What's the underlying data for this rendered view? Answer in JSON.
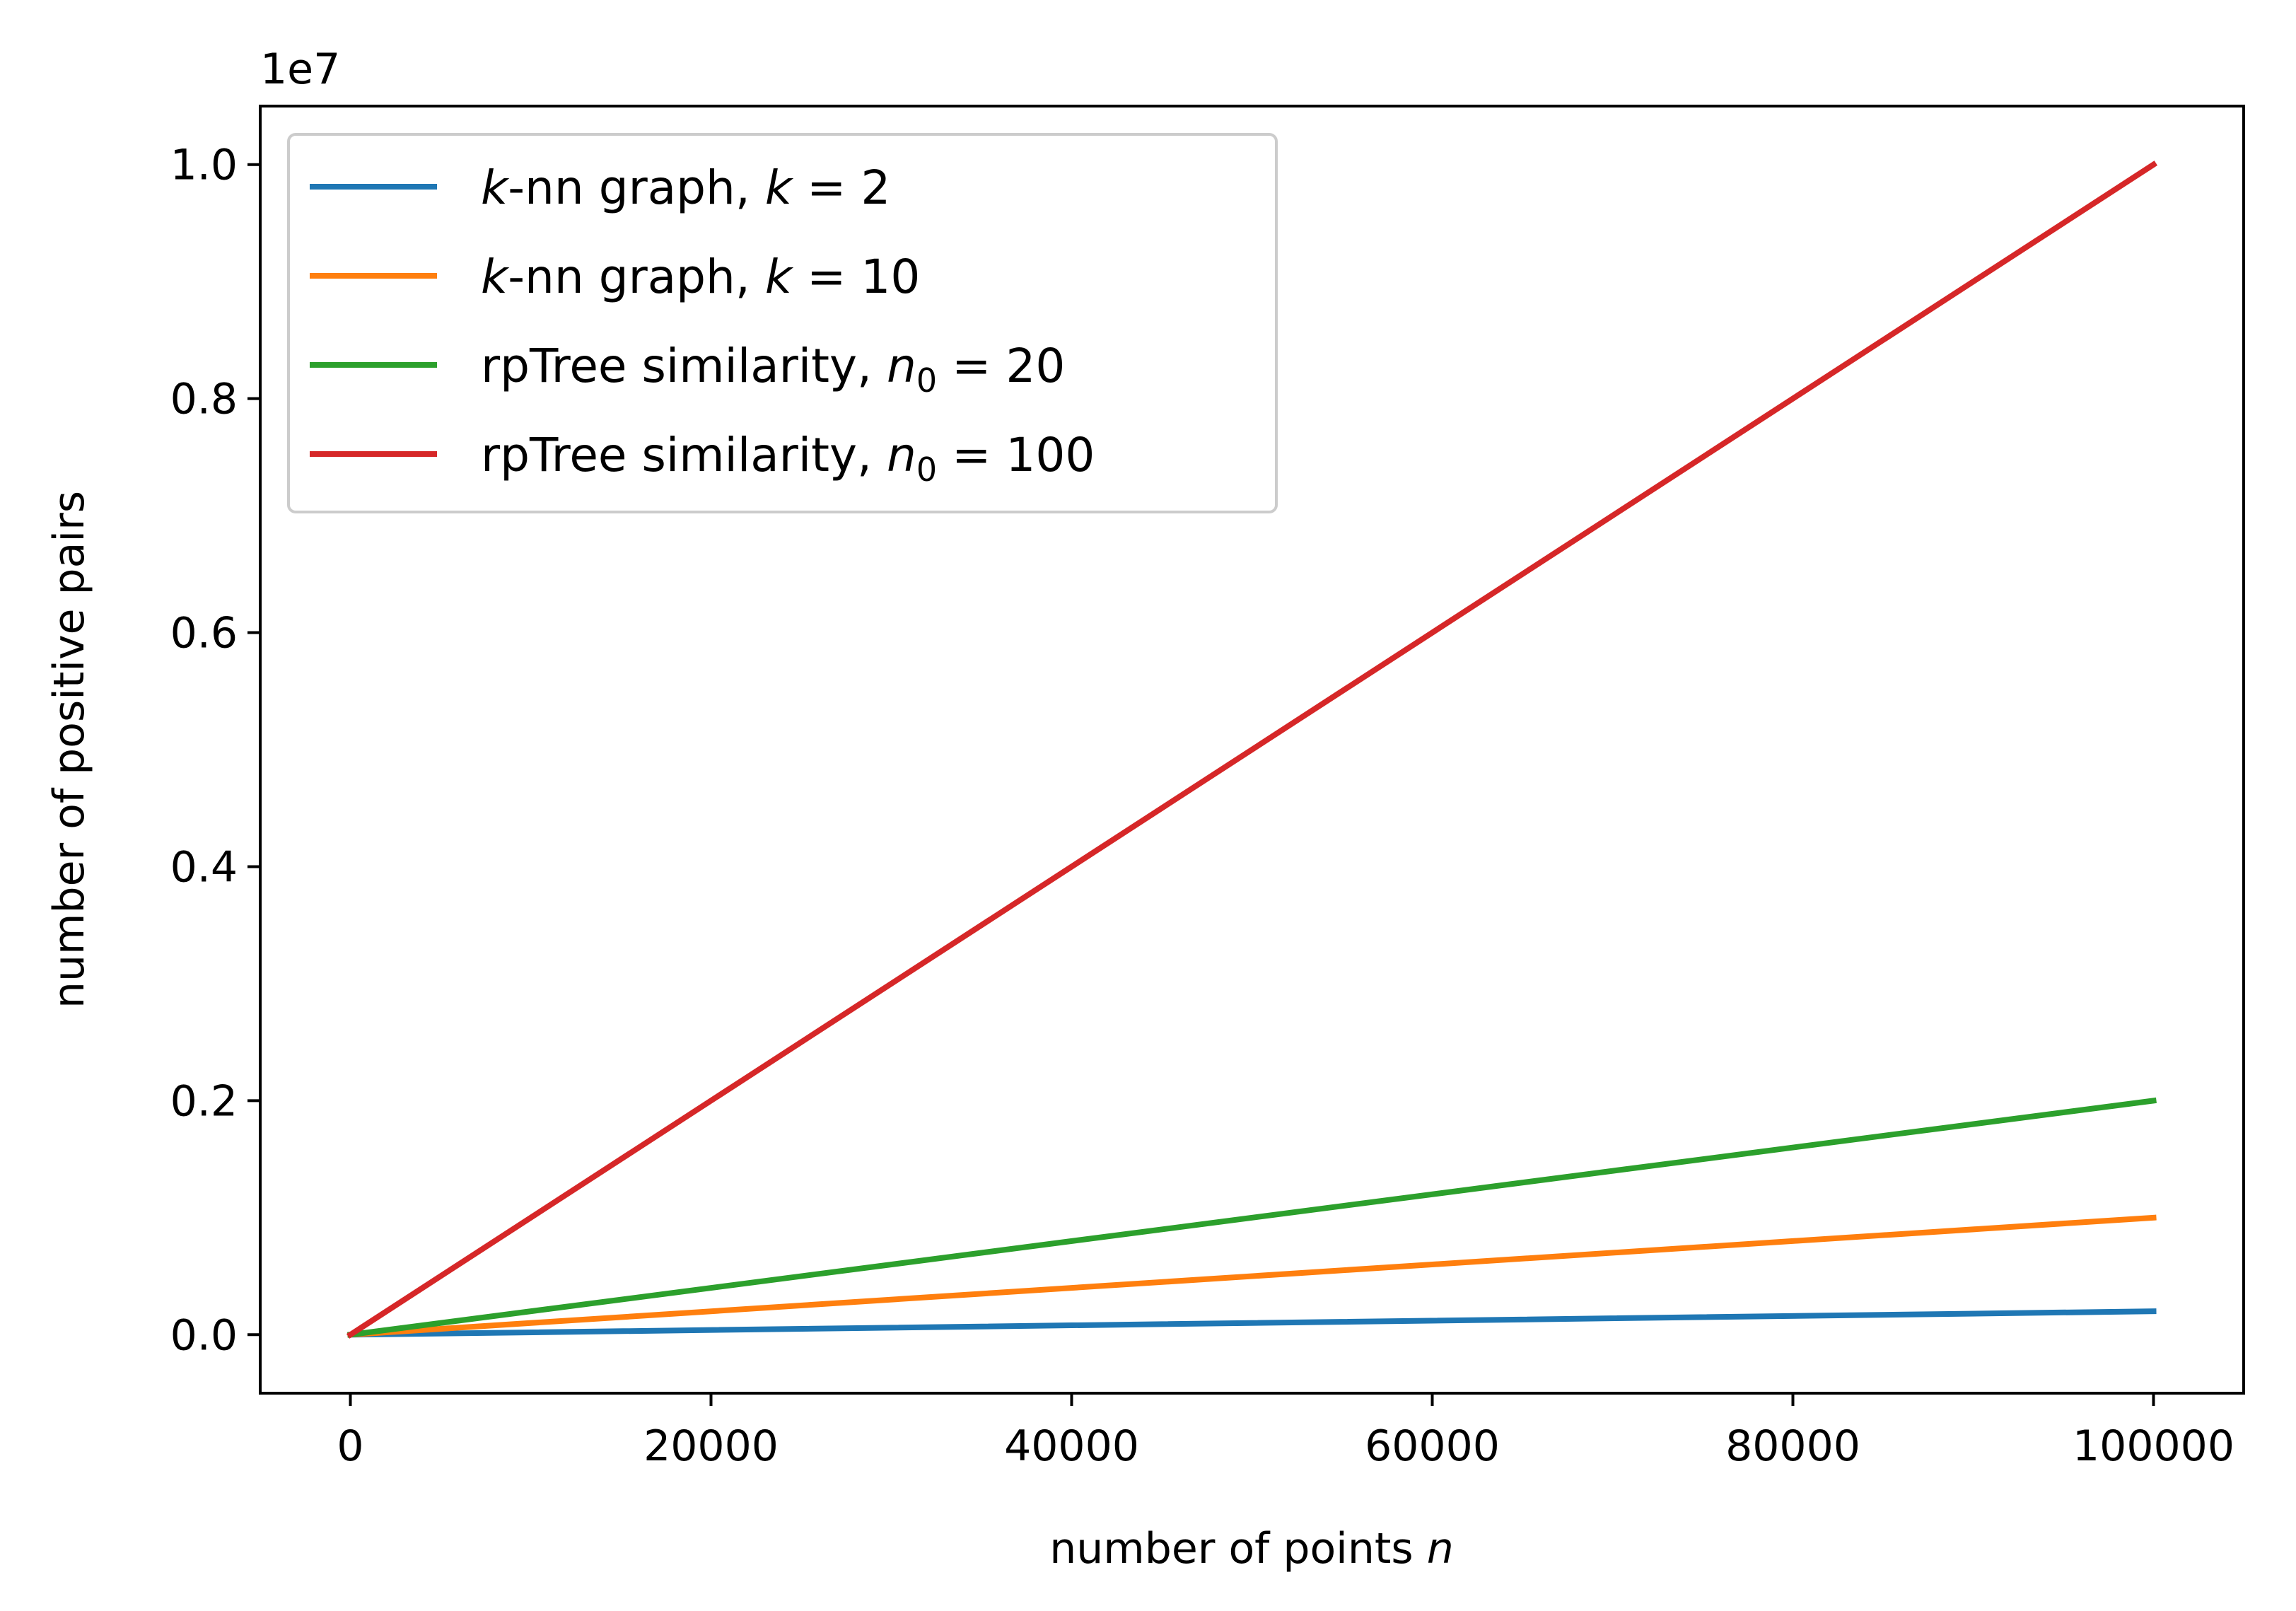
{
  "chart_data": {
    "type": "line",
    "title": "",
    "xlabel": {
      "text": "number of points ",
      "var": "n"
    },
    "ylabel": "number of positive pairs",
    "y_offset_label": "1e7",
    "xlim": [
      -5000,
      105000
    ],
    "ylim": [
      -0.05,
      1.05
    ],
    "y_scale_factor": 10000000,
    "x_ticks": [
      0,
      20000,
      40000,
      60000,
      80000,
      100000
    ],
    "x_tick_labels": [
      "0",
      "20000",
      "40000",
      "60000",
      "80000",
      "100000"
    ],
    "y_ticks": [
      0.0,
      0.2,
      0.4,
      0.6,
      0.8,
      1.0
    ],
    "y_tick_labels": [
      "0.0",
      "0.2",
      "0.4",
      "0.6",
      "0.8",
      "1.0"
    ],
    "grid": false,
    "legend_position": "top-left",
    "x": [
      0,
      100000
    ],
    "series": [
      {
        "name": "k-nn graph, k = 2",
        "legend": {
          "pre": "",
          "var": "k",
          "mid": "-nn graph, ",
          "var2": "k",
          "eq": " = 2"
        },
        "values": [
          0,
          0.02
        ],
        "color": "#1f77b4"
      },
      {
        "name": "k-nn graph, k = 10",
        "legend": {
          "pre": "",
          "var": "k",
          "mid": "-nn graph, ",
          "var2": "k",
          "eq": " = 10"
        },
        "values": [
          0,
          0.1
        ],
        "color": "#ff7f0e"
      },
      {
        "name": "rpTree similarity, n0 = 20",
        "legend": {
          "pre": "rpTree similarity, ",
          "var": "n",
          "sub": "0",
          "eq": " = 20"
        },
        "values": [
          0,
          0.2
        ],
        "color": "#2ca02c"
      },
      {
        "name": "rpTree similarity, n0 = 100",
        "legend": {
          "pre": "rpTree similarity, ",
          "var": "n",
          "sub": "0",
          "eq": " = 100"
        },
        "values": [
          0,
          1.0
        ],
        "color": "#d62728"
      }
    ]
  }
}
